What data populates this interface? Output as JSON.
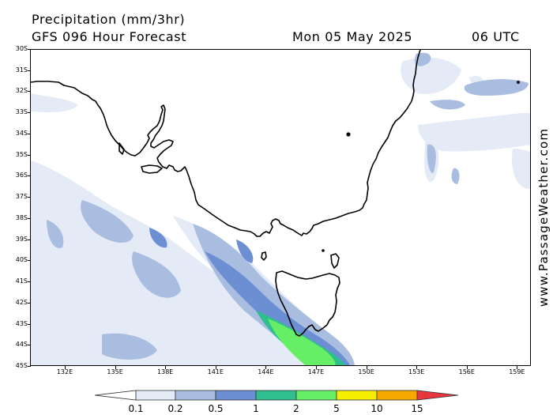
{
  "header": {
    "title": "Precipitation (mm/3hr)",
    "model": "GFS 096 Hour Forecast",
    "date": "Mon 05 May 2025",
    "time": "06 UTC"
  },
  "watermark": "www.PassageWeather.com",
  "axes": {
    "lat_labels": [
      "30S",
      "31S",
      "32S",
      "33S",
      "34S",
      "35S",
      "36S",
      "37S",
      "38S",
      "39S",
      "40S",
      "41S",
      "42S",
      "43S",
      "44S",
      "45S"
    ],
    "lon_labels": [
      "132E",
      "135E",
      "138E",
      "141E",
      "144E",
      "147E",
      "150E",
      "153E",
      "156E",
      "159E"
    ]
  },
  "legend": {
    "thresholds": [
      "0.1",
      "0.2",
      "0.5",
      "1",
      "2",
      "5",
      "10",
      "15"
    ],
    "colors": [
      "#ffffff",
      "#e4ebf6",
      "#a9bde1",
      "#6c8fd3",
      "#2fbf8f",
      "#66ee66",
      "#f5ee00",
      "#f6a800",
      "#e8363d"
    ]
  },
  "colors": {
    "coast": "#000000",
    "rain_light": "#e4ebf6",
    "rain_mid": "#a9bde1",
    "rain_heavy": "#6c8fd3",
    "rain_teal": "#2fbf8f",
    "rain_green": "#66ee66"
  }
}
